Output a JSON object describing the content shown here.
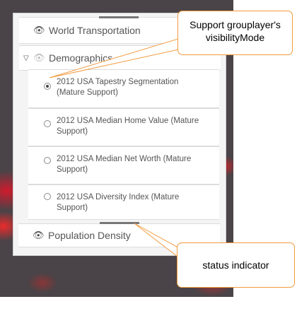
{
  "layer_list": {
    "layers": [
      {
        "label": "World Transportation",
        "icon": "eye-icon"
      },
      {
        "label": "Demographics",
        "icon": "eye-icon",
        "expanded": true
      },
      {
        "label": "Population Density",
        "icon": "eye-icon"
      }
    ],
    "sublayers": [
      {
        "label": "2012 USA Tapestry Segmentation (Mature Support)",
        "selected": true
      },
      {
        "label": "2012 USA Median Home Value (Mature Support)",
        "selected": false
      },
      {
        "label": "2012 USA Median Net Worth (Mature Support)",
        "selected": false
      },
      {
        "label": "2012 USA Diversity Index (Mature Support)",
        "selected": false
      }
    ]
  },
  "callouts": {
    "visibility_mode": "Support grouplayer's visibilityMode",
    "status_indicator": "status indicator"
  },
  "colors": {
    "callout_border": "#f19a3e",
    "map_background": "#4a4347",
    "status_bar": "#777777"
  }
}
